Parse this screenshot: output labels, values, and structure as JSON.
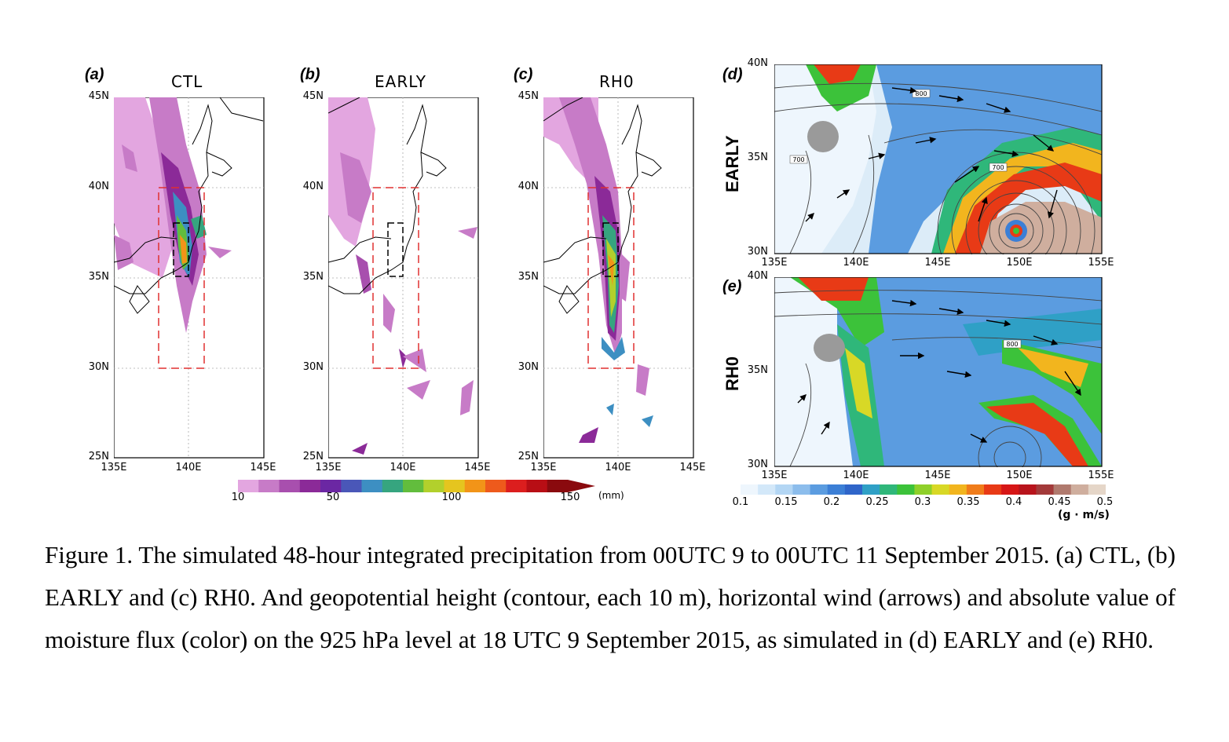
{
  "panels": {
    "a": {
      "letter": "(a)",
      "title": "CTL"
    },
    "b": {
      "letter": "(b)",
      "title": "EARLY"
    },
    "c": {
      "letter": "(c)",
      "title": "RH0"
    },
    "d": {
      "letter": "(d)",
      "side_label": "EARLY",
      "contour_labels": [
        "800",
        "700",
        "700"
      ]
    },
    "e": {
      "letter": "(e)",
      "side_label": "RH0",
      "contour_labels": [
        "800"
      ]
    }
  },
  "precip_axes": {
    "lat_ticks": [
      "45N",
      "40N",
      "35N",
      "30N",
      "25N"
    ],
    "lon_ticks": [
      "135E",
      "140E",
      "145E"
    ]
  },
  "flux_axes": {
    "lat_ticks": [
      "40N",
      "35N",
      "30N"
    ],
    "lon_ticks": [
      "135E",
      "140E",
      "145E",
      "150E",
      "155E"
    ]
  },
  "precip_colorbar": {
    "labels": [
      "10",
      "50",
      "100",
      "150"
    ],
    "unit": "(mm)",
    "colors": [
      "#e3a6e0",
      "#c77bc7",
      "#a84fae",
      "#8b2a98",
      "#6b27a3",
      "#4a57b8",
      "#3d8fc2",
      "#36a57f",
      "#62bd3d",
      "#b2d02c",
      "#e5c51f",
      "#f29418",
      "#ee5a1c",
      "#dc1e1e",
      "#b80e15",
      "#8a0a0e"
    ]
  },
  "flux_colorbar": {
    "labels": [
      "0.1",
      "0.15",
      "0.2",
      "0.25",
      "0.3",
      "0.35",
      "0.4",
      "0.45",
      "0.5"
    ],
    "unit": "(g · m/s)",
    "colors": [
      "#eef6fd",
      "#d3e8f9",
      "#b3d6f4",
      "#8cbdec",
      "#5b9ce0",
      "#3c7fd6",
      "#2f65c9",
      "#2fa0c6",
      "#2fb77a",
      "#3cc23a",
      "#8fd02a",
      "#d8d826",
      "#f2b51e",
      "#f07c1a",
      "#e83a16",
      "#d61616",
      "#b8141c",
      "#a33a3a",
      "#b07a6e",
      "#cfae9e",
      "#e5d6c8"
    ]
  },
  "caption": "Figure 1. The simulated 48-hour integrated precipitation from 00UTC 9 to 00UTC 11 September 2015. (a) CTL, (b) EARLY and (c) RH0. And geopotential height (contour, each 10 m), horizontal wind (arrows) and absolute value of moisture flux (color) on the 925 hPa level at 18 UTC 9 September 2015, as simulated in (d) EARLY and (e) RH0."
}
